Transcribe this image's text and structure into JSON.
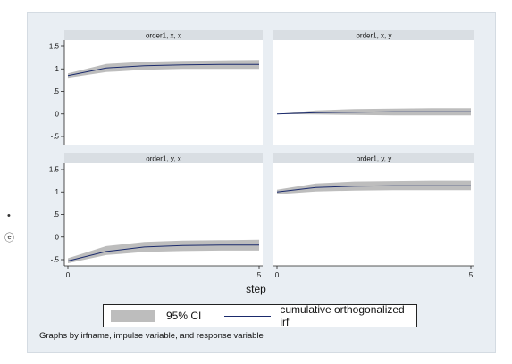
{
  "margin_glyphs": {
    "left_top": "•",
    "left_bottom": "ⓔ"
  },
  "chart_data": {
    "type": "area",
    "grid": false,
    "xlabel": "step",
    "x_ticks": [
      0,
      5
    ],
    "y_ticks": [
      1.5,
      1,
      0.5,
      0,
      -0.5
    ],
    "y_tick_labels": [
      "1.5",
      "1",
      ".5",
      "0",
      "-.5"
    ],
    "ylim": [
      -0.6,
      1.6
    ],
    "xlim": [
      0,
      5
    ],
    "note": "Graphs by irfname, impulse variable, and response variable",
    "legend": {
      "position": "bottom",
      "ci_label": "95% CI",
      "line_label": "cumulative orthogonalized irf"
    },
    "colors": {
      "ci": "#bdbdbd",
      "line": "#1a2a6c",
      "panel_header": "#d9dee3",
      "panel": "#ffffff"
    },
    "panels": [
      {
        "title": "order1, x, x",
        "x": [
          0,
          1,
          2,
          3,
          4,
          5
        ],
        "irf": [
          0.85,
          1.02,
          1.07,
          1.09,
          1.1,
          1.1
        ],
        "ci_low": [
          0.8,
          0.93,
          0.98,
          1.0,
          1.0,
          1.0
        ],
        "ci_high": [
          0.9,
          1.11,
          1.16,
          1.18,
          1.19,
          1.2
        ]
      },
      {
        "title": "order1, x, y",
        "x": [
          0,
          1,
          2,
          3,
          4,
          5
        ],
        "irf": [
          0.0,
          0.03,
          0.04,
          0.05,
          0.05,
          0.05
        ],
        "ci_low": [
          0.0,
          -0.01,
          -0.02,
          -0.03,
          -0.03,
          -0.03
        ],
        "ci_high": [
          0.0,
          0.08,
          0.11,
          0.12,
          0.13,
          0.13
        ]
      },
      {
        "title": "order1, y, x",
        "x": [
          0,
          1,
          2,
          3,
          4,
          5
        ],
        "irf": [
          -0.53,
          -0.32,
          -0.22,
          -0.19,
          -0.18,
          -0.18
        ],
        "ci_low": [
          -0.58,
          -0.4,
          -0.33,
          -0.31,
          -0.3,
          -0.3
        ],
        "ci_high": [
          -0.47,
          -0.2,
          -0.11,
          -0.08,
          -0.07,
          -0.06
        ]
      },
      {
        "title": "order1, y, y",
        "x": [
          0,
          1,
          2,
          3,
          4,
          5
        ],
        "irf": [
          1.0,
          1.1,
          1.13,
          1.14,
          1.14,
          1.14
        ],
        "ci_low": [
          0.95,
          1.01,
          1.03,
          1.04,
          1.04,
          1.04
        ],
        "ci_high": [
          1.05,
          1.19,
          1.23,
          1.24,
          1.25,
          1.25
        ]
      }
    ]
  }
}
